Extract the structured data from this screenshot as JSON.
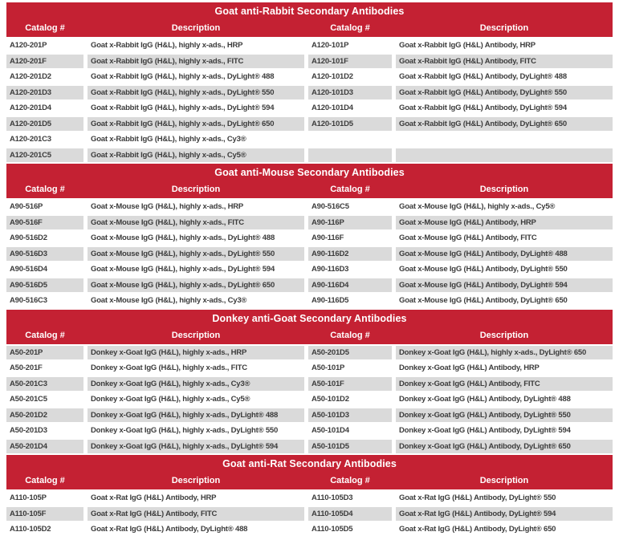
{
  "document_title": "Secondary Antibodies Catalog Tables",
  "colors": {
    "header_red": "#C42133",
    "row_stripe_gray": "#DADADA",
    "text_dark": "#3C3C3C",
    "header_text_white": "#FFFFFF"
  },
  "sections": [
    {
      "title": "Goat anti-Rabbit Secondary Antibodies",
      "headers": [
        "Catalog #",
        "Description",
        "Catalog #",
        "Description"
      ],
      "rows": [
        [
          "A120-201P",
          "Goat x-Rabbit IgG (H&L), highly x-ads., HRP",
          "A120-101P",
          "Goat x-Rabbit IgG (H&L) Antibody, HRP"
        ],
        [
          "A120-201F",
          "Goat x-Rabbit IgG (H&L), highly x-ads., FITC",
          "A120-101F",
          "Goat x-Rabbit IgG (H&L) Antibody, FITC"
        ],
        [
          "A120-201D2",
          "Goat x-Rabbit IgG (H&L), highly x-ads., DyLight® 488",
          "A120-101D2",
          "Goat x-Rabbit IgG (H&L) Antibody, DyLight® 488"
        ],
        [
          "A120-201D3",
          "Goat x-Rabbit IgG (H&L), highly x-ads., DyLight® 550",
          "A120-101D3",
          "Goat x-Rabbit IgG (H&L) Antibody, DyLight® 550"
        ],
        [
          "A120-201D4",
          "Goat x-Rabbit IgG (H&L), highly x-ads., DyLight® 594",
          "A120-101D4",
          "Goat x-Rabbit IgG (H&L) Antibody, DyLight® 594"
        ],
        [
          "A120-201D5",
          "Goat x-Rabbit IgG (H&L), highly x-ads., DyLight® 650",
          "A120-101D5",
          "Goat x-Rabbit IgG (H&L) Antibody, DyLight® 650"
        ],
        [
          "A120-201C3",
          "Goat x-Rabbit IgG (H&L), highly x-ads., Cy3®",
          "",
          ""
        ],
        [
          "A120-201C5",
          "Goat x-Rabbit IgG (H&L), highly x-ads., Cy5®",
          "",
          ""
        ]
      ]
    },
    {
      "title": "Goat anti-Mouse Secondary Antibodies",
      "headers": [
        "Catalog #",
        "Description",
        "Catalog #",
        "Description"
      ],
      "rows": [
        [
          "A90-516P",
          "Goat x-Mouse IgG (H&L), highly x-ads., HRP",
          "A90-516C5",
          "Goat x-Mouse IgG (H&L), highly x-ads., Cy5®"
        ],
        [
          "A90-516F",
          "Goat x-Mouse IgG (H&L), highly x-ads., FITC",
          "A90-116P",
          "Goat x-Mouse IgG (H&L) Antibody, HRP"
        ],
        [
          "A90-516D2",
          "Goat x-Mouse IgG (H&L), highly x-ads., DyLight® 488",
          "A90-116F",
          "Goat x-Mouse IgG (H&L) Antibody, FITC"
        ],
        [
          "A90-516D3",
          "Goat x-Mouse IgG (H&L), highly x-ads., DyLight® 550",
          "A90-116D2",
          "Goat x-Mouse IgG (H&L) Antibody, DyLight® 488"
        ],
        [
          "A90-516D4",
          "Goat x-Mouse IgG (H&L), highly x-ads., DyLight® 594",
          "A90-116D3",
          "Goat x-Mouse IgG (H&L) Antibody, DyLight® 550"
        ],
        [
          "A90-516D5",
          "Goat x-Mouse IgG (H&L), highly x-ads., DyLight® 650",
          "A90-116D4",
          "Goat x-Mouse IgG (H&L) Antibody, DyLight® 594"
        ],
        [
          "A90-516C3",
          "Goat x-Mouse IgG (H&L), highly x-ads., Cy3®",
          "A90-116D5",
          "Goat x-Mouse IgG (H&L) Antibody, DyLight® 650"
        ]
      ]
    },
    {
      "title": "Donkey anti-Goat Secondary Antibodies",
      "headers": [
        "Catalog #",
        "Description",
        "Catalog #",
        "Description"
      ],
      "rows": [
        [
          "A50-201P",
          "Donkey x-Goat IgG (H&L), highly x-ads., HRP",
          "A50-201D5",
          "Donkey x-Goat IgG (H&L), highly x-ads., DyLight® 650"
        ],
        [
          "A50-201F",
          "Donkey x-Goat IgG (H&L), highly x-ads., FITC",
          "A50-101P",
          "Donkey x-Goat IgG (H&L) Antibody, HRP"
        ],
        [
          "A50-201C3",
          "Donkey x-Goat IgG (H&L), highly x-ads., Cy3®",
          "A50-101F",
          "Donkey x-Goat IgG (H&L) Antibody, FITC"
        ],
        [
          "A50-201C5",
          "Donkey x-Goat IgG (H&L), highly x-ads., Cy5®",
          "A50-101D2",
          "Donkey x-Goat IgG (H&L) Antibody, DyLight® 488"
        ],
        [
          "A50-201D2",
          "Donkey x-Goat IgG (H&L), highly x-ads., DyLight® 488",
          "A50-101D3",
          "Donkey x-Goat IgG (H&L) Antibody, DyLight® 550"
        ],
        [
          "A50-201D3",
          "Donkey x-Goat IgG (H&L), highly x-ads., DyLight® 550",
          "A50-101D4",
          "Donkey x-Goat IgG (H&L) Antibody, DyLight® 594"
        ],
        [
          "A50-201D4",
          "Donkey x-Goat IgG (H&L), highly x-ads., DyLight® 594",
          "A50-101D5",
          "Donkey x-Goat IgG (H&L) Antibody, DyLight® 650"
        ]
      ]
    },
    {
      "title": "Goat anti-Rat Secondary Antibodies",
      "headers": [
        "Catalog #",
        "Description",
        "Catalog #",
        "Description"
      ],
      "rows": [
        [
          "A110-105P",
          "Goat x-Rat IgG (H&L) Antibody, HRP",
          "A110-105D3",
          "Goat x-Rat IgG (H&L) Antibody, DyLight® 550"
        ],
        [
          "A110-105F",
          "Goat x-Rat IgG (H&L) Antibody, FITC",
          "A110-105D4",
          "Goat x-Rat IgG (H&L) Antibody, DyLight® 594"
        ],
        [
          "A110-105D2",
          "Goat x-Rat IgG (H&L) Antibody, DyLight® 488",
          "A110-105D5",
          "Goat x-Rat IgG (H&L) Antibody, DyLight® 650"
        ]
      ]
    }
  ]
}
